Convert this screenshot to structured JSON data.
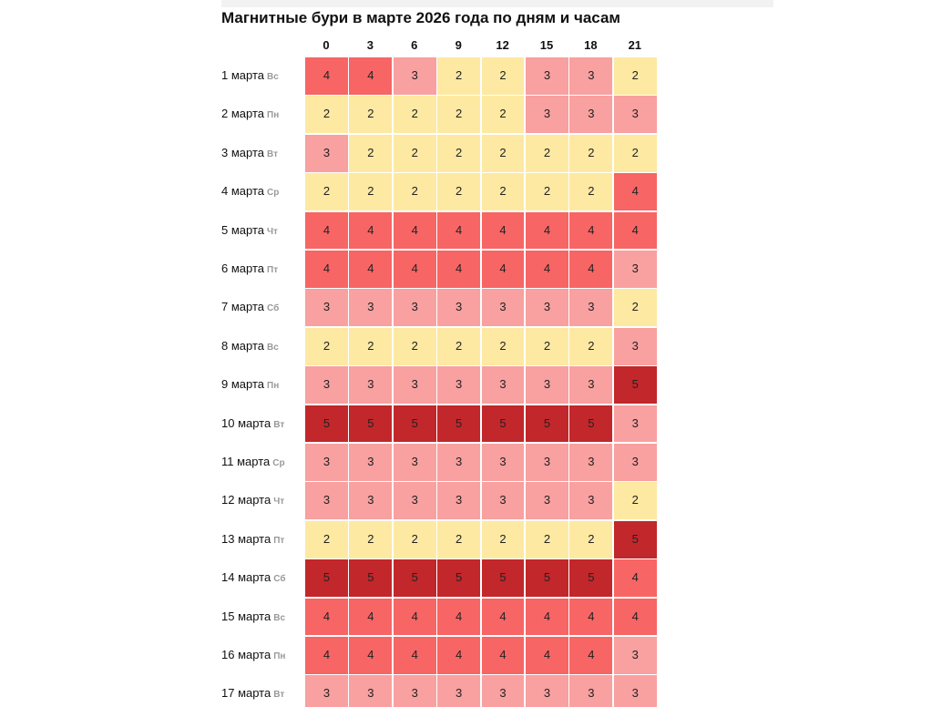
{
  "title": "Магнитные бури в марте 2026 года по дням и часам",
  "columns": [
    0,
    3,
    6,
    9,
    12,
    15,
    18,
    21
  ],
  "rows": [
    {
      "date": "1 марта",
      "weekday": "Вс",
      "values": [
        4,
        4,
        3,
        2,
        2,
        3,
        3,
        2
      ]
    },
    {
      "date": "2 марта",
      "weekday": "Пн",
      "values": [
        2,
        2,
        2,
        2,
        2,
        3,
        3,
        3
      ]
    },
    {
      "date": "3 марта",
      "weekday": "Вт",
      "values": [
        3,
        2,
        2,
        2,
        2,
        2,
        2,
        2
      ]
    },
    {
      "date": "4 марта",
      "weekday": "Ср",
      "values": [
        2,
        2,
        2,
        2,
        2,
        2,
        2,
        4
      ]
    },
    {
      "date": "5 марта",
      "weekday": "Чт",
      "values": [
        4,
        4,
        4,
        4,
        4,
        4,
        4,
        4
      ]
    },
    {
      "date": "6 марта",
      "weekday": "Пт",
      "values": [
        4,
        4,
        4,
        4,
        4,
        4,
        4,
        3
      ]
    },
    {
      "date": "7 марта",
      "weekday": "Сб",
      "values": [
        3,
        3,
        3,
        3,
        3,
        3,
        3,
        2
      ]
    },
    {
      "date": "8 марта",
      "weekday": "Вс",
      "values": [
        2,
        2,
        2,
        2,
        2,
        2,
        2,
        3
      ]
    },
    {
      "date": "9 марта",
      "weekday": "Пн",
      "values": [
        3,
        3,
        3,
        3,
        3,
        3,
        3,
        5
      ]
    },
    {
      "date": "10 марта",
      "weekday": "Вт",
      "values": [
        5,
        5,
        5,
        5,
        5,
        5,
        5,
        3
      ]
    },
    {
      "date": "11 марта",
      "weekday": "Ср",
      "values": [
        3,
        3,
        3,
        3,
        3,
        3,
        3,
        3
      ]
    },
    {
      "date": "12 марта",
      "weekday": "Чт",
      "values": [
        3,
        3,
        3,
        3,
        3,
        3,
        3,
        2
      ]
    },
    {
      "date": "13 марта",
      "weekday": "Пт",
      "values": [
        2,
        2,
        2,
        2,
        2,
        2,
        2,
        5
      ]
    },
    {
      "date": "14 марта",
      "weekday": "Сб",
      "values": [
        5,
        5,
        5,
        5,
        5,
        5,
        5,
        4
      ]
    },
    {
      "date": "15 марта",
      "weekday": "Вс",
      "values": [
        4,
        4,
        4,
        4,
        4,
        4,
        4,
        4
      ]
    },
    {
      "date": "16 марта",
      "weekday": "Пн",
      "values": [
        4,
        4,
        4,
        4,
        4,
        4,
        4,
        3
      ]
    },
    {
      "date": "17 марта",
      "weekday": "Вт",
      "values": [
        3,
        3,
        3,
        3,
        3,
        3,
        3,
        3
      ]
    }
  ]
}
